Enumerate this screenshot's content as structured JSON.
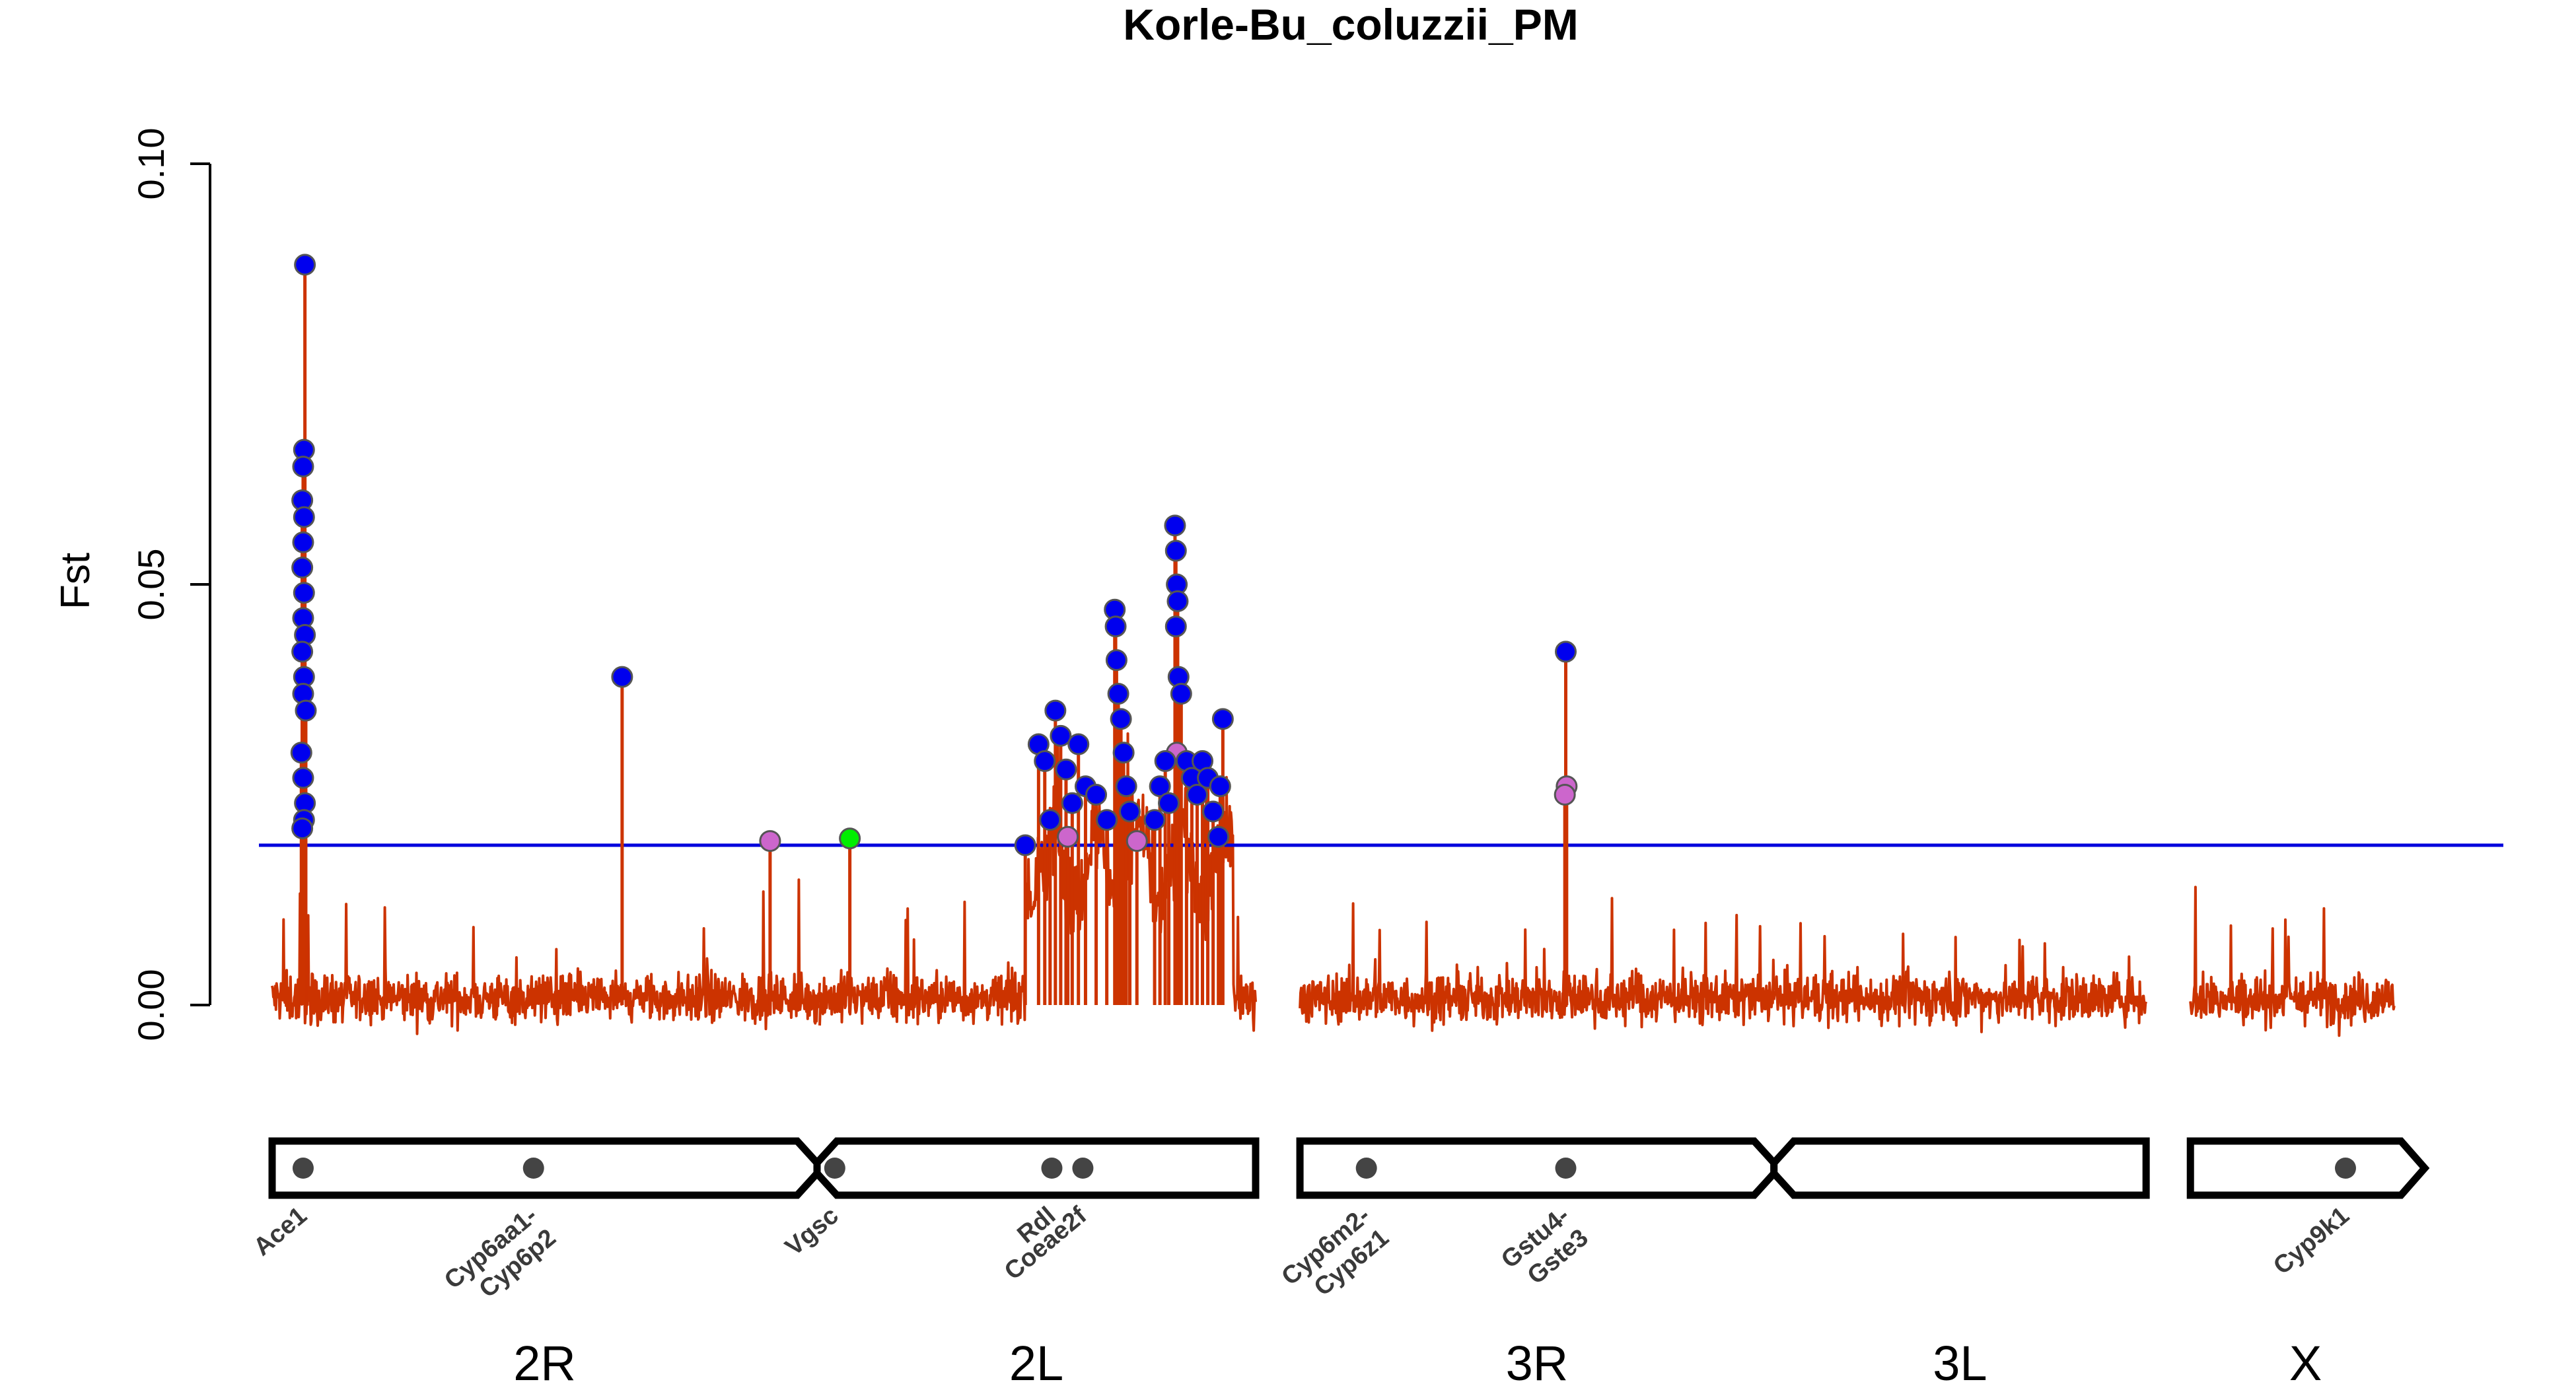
{
  "chart_data": {
    "type": "line",
    "title": "Korle-Bu_coluzzii_PM",
    "xlabel": "",
    "ylabel": "Fst",
    "ylim": [
      -0.008,
      0.1
    ],
    "yticks": [
      "0.00",
      "0.05",
      "0.10"
    ],
    "threshold": 0.019,
    "colors": {
      "line": "#cc3300",
      "threshold": "#0000dd",
      "point_high": "#0000ee",
      "point_mid": "#cc66cc",
      "point_low": "#00ee00",
      "point_border": "#555555",
      "chrom_border": "#000000",
      "gene_dot": "#444444"
    },
    "chromosomes": [
      {
        "name": "2R",
        "start": 0,
        "end": 61.5,
        "centromere": "end"
      },
      {
        "name": "2L",
        "start": 61.5,
        "end": 111.0,
        "centromere": "start"
      },
      {
        "name": "3R",
        "start": 116.0,
        "end": 169.5,
        "centromere": "end"
      },
      {
        "name": "3L",
        "start": 169.5,
        "end": 211.5,
        "centromere": "start"
      },
      {
        "name": "X",
        "start": 216.5,
        "end": 242.5,
        "centromere": "none"
      }
    ],
    "genes": [
      {
        "label": "Ace1",
        "pos": 3.5
      },
      {
        "label": "Cyp6aa1-\nCyp6p2",
        "pos": 29.5
      },
      {
        "label": "Vgsc",
        "pos": 63.5
      },
      {
        "label": "Rdl",
        "pos": 88.0
      },
      {
        "label": "Coeae2f",
        "pos": 91.5
      },
      {
        "label": "Cyp6m2-\nCyp6z1",
        "pos": 123.5
      },
      {
        "label": "Gstu4-\nGste3",
        "pos": 146.0
      },
      {
        "label": "Cyp9k1",
        "pos": 234.0
      }
    ],
    "peaks": [
      {
        "x": 3.7,
        "y": 0.088
      },
      {
        "x": 3.6,
        "y": 0.066
      },
      {
        "x": 3.5,
        "y": 0.064
      },
      {
        "x": 3.4,
        "y": 0.06
      },
      {
        "x": 3.6,
        "y": 0.058
      },
      {
        "x": 3.5,
        "y": 0.055
      },
      {
        "x": 3.4,
        "y": 0.052
      },
      {
        "x": 3.6,
        "y": 0.049
      },
      {
        "x": 3.5,
        "y": 0.046
      },
      {
        "x": 3.7,
        "y": 0.044
      },
      {
        "x": 3.4,
        "y": 0.042
      },
      {
        "x": 3.6,
        "y": 0.039
      },
      {
        "x": 3.5,
        "y": 0.037
      },
      {
        "x": 3.8,
        "y": 0.035
      },
      {
        "x": 3.3,
        "y": 0.03
      },
      {
        "x": 3.5,
        "y": 0.027
      },
      {
        "x": 3.7,
        "y": 0.024
      },
      {
        "x": 3.6,
        "y": 0.022
      },
      {
        "x": 3.4,
        "y": 0.021
      },
      {
        "x": 39.5,
        "y": 0.039
      },
      {
        "x": 56.2,
        "y": 0.0195,
        "level": "mid"
      },
      {
        "x": 65.2,
        "y": 0.0198,
        "level": "low"
      },
      {
        "x": 85.0,
        "y": 0.019
      },
      {
        "x": 86.5,
        "y": 0.031
      },
      {
        "x": 87.2,
        "y": 0.029
      },
      {
        "x": 88.4,
        "y": 0.035
      },
      {
        "x": 89.0,
        "y": 0.032
      },
      {
        "x": 89.6,
        "y": 0.028
      },
      {
        "x": 90.3,
        "y": 0.024
      },
      {
        "x": 91.0,
        "y": 0.031
      },
      {
        "x": 91.8,
        "y": 0.026
      },
      {
        "x": 87.8,
        "y": 0.022
      },
      {
        "x": 89.8,
        "y": 0.02,
        "level": "mid"
      },
      {
        "x": 93.0,
        "y": 0.025
      },
      {
        "x": 94.2,
        "y": 0.022
      },
      {
        "x": 95.1,
        "y": 0.047
      },
      {
        "x": 95.2,
        "y": 0.045
      },
      {
        "x": 95.3,
        "y": 0.041
      },
      {
        "x": 95.5,
        "y": 0.037
      },
      {
        "x": 95.8,
        "y": 0.034
      },
      {
        "x": 96.1,
        "y": 0.03
      },
      {
        "x": 96.4,
        "y": 0.026
      },
      {
        "x": 96.8,
        "y": 0.023
      },
      {
        "x": 97.6,
        "y": 0.0195,
        "level": "mid"
      },
      {
        "x": 99.6,
        "y": 0.022
      },
      {
        "x": 100.2,
        "y": 0.026
      },
      {
        "x": 100.8,
        "y": 0.029
      },
      {
        "x": 101.2,
        "y": 0.024
      },
      {
        "x": 101.9,
        "y": 0.057
      },
      {
        "x": 102.0,
        "y": 0.054
      },
      {
        "x": 102.1,
        "y": 0.05
      },
      {
        "x": 102.2,
        "y": 0.048
      },
      {
        "x": 102.0,
        "y": 0.045
      },
      {
        "x": 102.3,
        "y": 0.039
      },
      {
        "x": 102.6,
        "y": 0.037
      },
      {
        "x": 102.1,
        "y": 0.03,
        "level": "mid"
      },
      {
        "x": 103.2,
        "y": 0.029
      },
      {
        "x": 103.8,
        "y": 0.027
      },
      {
        "x": 104.4,
        "y": 0.025
      },
      {
        "x": 105.0,
        "y": 0.029
      },
      {
        "x": 105.6,
        "y": 0.027
      },
      {
        "x": 106.2,
        "y": 0.023
      },
      {
        "x": 106.8,
        "y": 0.02
      },
      {
        "x": 107.3,
        "y": 0.034
      },
      {
        "x": 107.0,
        "y": 0.026
      },
      {
        "x": 146.0,
        "y": 0.042
      },
      {
        "x": 146.1,
        "y": 0.026,
        "level": "mid"
      },
      {
        "x": 145.9,
        "y": 0.025,
        "level": "mid"
      }
    ]
  }
}
